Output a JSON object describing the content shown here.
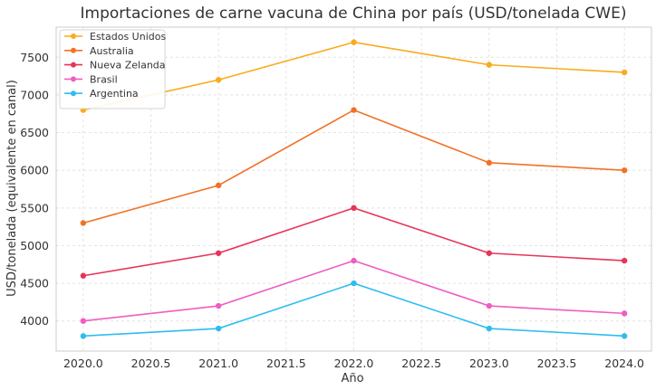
{
  "chart_data": {
    "type": "line",
    "title": "Importaciones de carne vacuna de China por país (USD/tonelada CWE)",
    "xlabel": "Año",
    "ylabel": "USD/tonelada (equivalente en canal)",
    "x": [
      2020,
      2021,
      2022,
      2023,
      2024
    ],
    "xticks": [
      "2020.0",
      "2020.5",
      "2021.0",
      "2021.5",
      "2022.0",
      "2022.5",
      "2023.0",
      "2023.5",
      "2024.0"
    ],
    "yticks": [
      "4000",
      "4500",
      "5000",
      "5500",
      "6000",
      "6500",
      "7000",
      "7500"
    ],
    "xlim": [
      2019.8,
      2024.2
    ],
    "ylim": [
      3600,
      7900
    ],
    "grid": true,
    "legend_position": "top-left",
    "series": [
      {
        "name": "Estados Unidos",
        "color": "#f9ab1b",
        "values": [
          6800,
          7200,
          7700,
          7400,
          7300
        ]
      },
      {
        "name": "Australia",
        "color": "#f07226",
        "values": [
          5300,
          5800,
          6800,
          6100,
          6000
        ]
      },
      {
        "name": "Nueva Zelanda",
        "color": "#e73557",
        "values": [
          4600,
          4900,
          5500,
          4900,
          4800
        ]
      },
      {
        "name": "Brasil",
        "color": "#ef5dc2",
        "values": [
          4000,
          4200,
          4800,
          4200,
          4100
        ]
      },
      {
        "name": "Argentina",
        "color": "#2ebdf0",
        "values": [
          3800,
          3900,
          4500,
          3900,
          3800
        ]
      }
    ]
  }
}
